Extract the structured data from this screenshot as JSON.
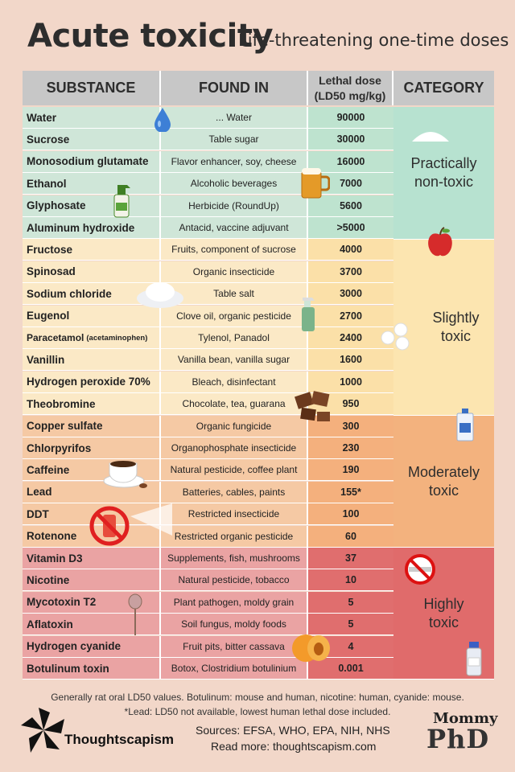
{
  "title": "Acute toxicity",
  "subtitle": "Life-threatening one-time doses",
  "headers": {
    "substance": "SUBSTANCE",
    "found_in": "FOUND IN",
    "lethal_line1": "Lethal dose",
    "lethal_line2": "(LD50 mg/kg)",
    "category": "CATEGORY"
  },
  "rows": [
    {
      "substance": "Water",
      "found": "... Water",
      "ld": "90000"
    },
    {
      "substance": "Sucrose",
      "found": "Table sugar",
      "ld": "30000"
    },
    {
      "substance": "Monosodium glutamate",
      "found": "Flavor enhancer, soy, cheese",
      "ld": "16000"
    },
    {
      "substance": "Ethanol",
      "found": "Alcoholic beverages",
      "ld": "7000"
    },
    {
      "substance": "Glyphosate",
      "found": "Herbicide (RoundUp)",
      "ld": "5600"
    },
    {
      "substance": "Aluminum hydroxide",
      "found": "Antacid, vaccine adjuvant",
      "ld": ">5000"
    },
    {
      "substance": "Fructose",
      "found": "Fruits, component of sucrose",
      "ld": "4000"
    },
    {
      "substance": "Spinosad",
      "found": "Organic insecticide",
      "ld": "3700"
    },
    {
      "substance": "Sodium chloride",
      "found": "Table salt",
      "ld": "3000"
    },
    {
      "substance": "Eugenol",
      "found": "Clove oil, organic pesticide",
      "ld": "2700"
    },
    {
      "substance": "Paracetamol",
      "note": "(acetaminophen)",
      "found": "Tylenol, Panadol",
      "ld": "2400"
    },
    {
      "substance": "Vanillin",
      "found": "Vanilla bean, vanilla sugar",
      "ld": "1600"
    },
    {
      "substance": "Hydrogen peroxide 70%",
      "found": "Bleach, disinfectant",
      "ld": "1000"
    },
    {
      "substance": "Theobromine",
      "found": "Chocolate, tea, guarana",
      "ld": "950"
    },
    {
      "substance": "Copper sulfate",
      "found": "Organic fungicide",
      "ld": "300"
    },
    {
      "substance": "Chlorpyrifos",
      "found": "Organophosphate insecticide",
      "ld": "230"
    },
    {
      "substance": "Caffeine",
      "found": "Natural pesticide, coffee plant",
      "ld": "190"
    },
    {
      "substance": "Lead",
      "found": "Batteries, cables, paints",
      "ld": "155*"
    },
    {
      "substance": "DDT",
      "found": "Restricted insecticide",
      "ld": "100"
    },
    {
      "substance": "Rotenone",
      "found": "Restricted organic pesticide",
      "ld": "60"
    },
    {
      "substance": "Vitamin D3",
      "found": "Supplements, fish, mushrooms",
      "ld": "37"
    },
    {
      "substance": "Nicotine",
      "found": "Natural pesticide, tobacco",
      "ld": "10"
    },
    {
      "substance": "Mycotoxin T2",
      "found": "Plant pathogen, moldy grain",
      "ld": "5"
    },
    {
      "substance": "Aflatoxin",
      "found": "Soil fungus, moldy foods",
      "ld": "5"
    },
    {
      "substance": "Hydrogen cyanide",
      "found": "Fruit pits, bitter cassava",
      "ld": "4"
    },
    {
      "substance": "Botulinum toxin",
      "found": "Botox, Clostridium botulinium",
      "ld": "0.001"
    }
  ],
  "categories": [
    {
      "line1": "Practically",
      "line2": "non-toxic"
    },
    {
      "line1": "Slightly",
      "line2": "toxic"
    },
    {
      "line1": "Moderately",
      "line2": "toxic"
    },
    {
      "line1": "Highly",
      "line2": "toxic"
    }
  ],
  "footer": {
    "note1": "Generally rat oral LD50 values. Botulinum: mouse and human, nicotine: human, cyanide: mouse.",
    "note2": "*Lead: LD50 not available, lowest human lethal dose included.",
    "brand": "Thoughtscapism",
    "sources": "Sources: EFSA, WHO, EPA, NIH, NHS",
    "read_more": "Read more: thoughtscapism.com",
    "logo_line1": "Mommy",
    "logo_line2": "PhD"
  },
  "colors": {
    "background": "#f2d7c9",
    "practically_non_toxic": "#b7e2d0",
    "slightly_toxic": "#fce5b0",
    "moderately_toxic": "#f3b27e",
    "highly_toxic": "#e06b6b"
  }
}
